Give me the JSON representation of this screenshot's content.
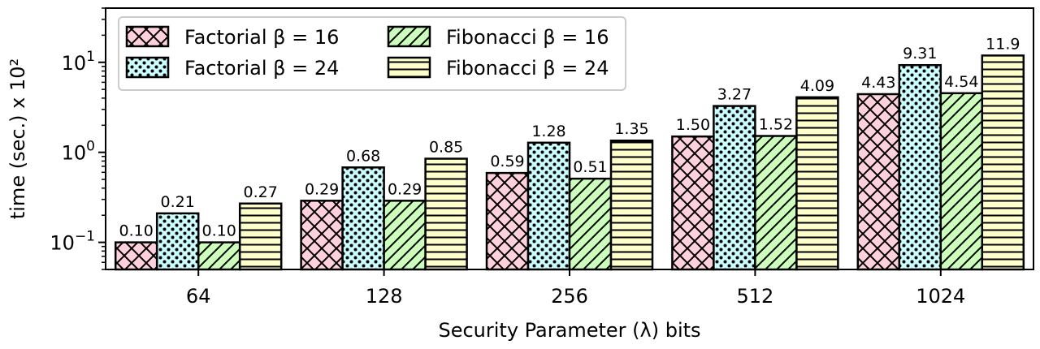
{
  "chart_data": {
    "type": "bar",
    "categories": [
      "64",
      "128",
      "256",
      "512",
      "1024"
    ],
    "series": [
      {
        "name": "Factorial β = 16",
        "color": "#ffd1dc",
        "hatch": "crosshatch",
        "values": [
          0.1,
          0.29,
          0.59,
          1.5,
          4.43
        ],
        "labels": [
          "0.10",
          "0.29",
          "0.59",
          "1.50",
          "4.43"
        ]
      },
      {
        "name": "Factorial β = 24",
        "color": "#ccffff",
        "hatch": "dots",
        "values": [
          0.21,
          0.68,
          1.28,
          3.27,
          9.31
        ],
        "labels": [
          "0.21",
          "0.68",
          "1.28",
          "3.27",
          "9.31"
        ]
      },
      {
        "name": "Fibonacci β = 16",
        "color": "#ccffbb",
        "hatch": "diagonal",
        "values": [
          0.1,
          0.29,
          0.51,
          1.52,
          4.54
        ],
        "labels": [
          "0.10",
          "0.29",
          "0.51",
          "1.52",
          "4.54"
        ]
      },
      {
        "name": "Fibonacci β = 24",
        "color": "#ffffcc",
        "hatch": "horizontal",
        "values": [
          0.27,
          0.85,
          1.35,
          4.09,
          11.9
        ],
        "labels": [
          "0.27",
          "0.85",
          "1.35",
          "4.09",
          "11.9"
        ]
      }
    ],
    "xlabel": "Security Parameter (λ) bits",
    "ylabel": "time (sec.) x 10²",
    "yscale": "log",
    "ylim": [
      0.05,
      40
    ],
    "yticks": [
      {
        "value": 0.1,
        "base": "10",
        "exp": "−1"
      },
      {
        "value": 1,
        "base": "10",
        "exp": "0"
      },
      {
        "value": 10,
        "base": "10",
        "exp": "1"
      }
    ],
    "grid": false,
    "legend_position": "top-left",
    "legend_columns": 2
  }
}
